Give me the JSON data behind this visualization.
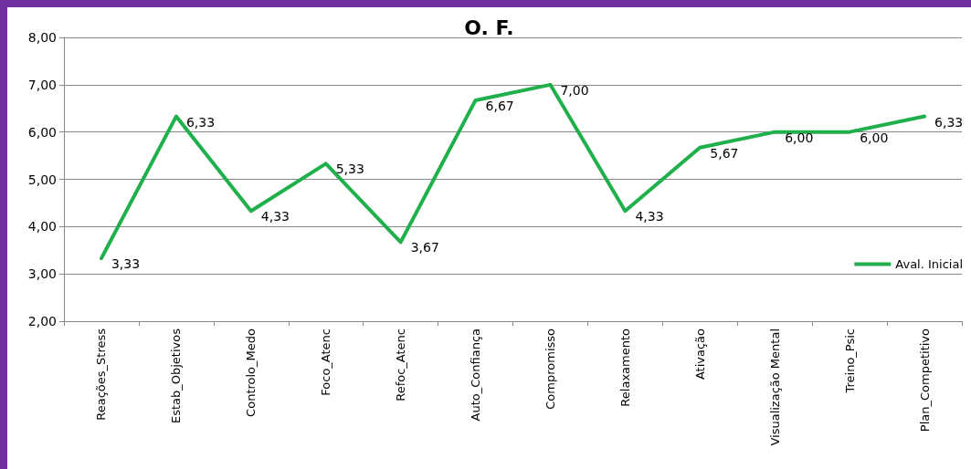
{
  "chart_data": {
    "type": "line",
    "title": "O. F.",
    "categories": [
      "Reações_Stress",
      "Estab_Objetivos",
      "Controlo_Medo",
      "Foco_Atenc",
      "Refoc_Atenc",
      "Auto_Confiança",
      "Compromisso",
      "Relaxamento",
      "Ativação",
      "Visualização Mental",
      "Treino_Psic",
      "Plan_Competitivo"
    ],
    "series": [
      {
        "name": "Aval. Inicial",
        "color": "#1fb04c",
        "values": [
          3.33,
          6.33,
          4.33,
          5.33,
          3.67,
          6.67,
          7.0,
          4.33,
          5.67,
          6.0,
          6.0,
          6.33
        ],
        "value_labels": [
          "3,33",
          "6,33",
          "4,33",
          "5,33",
          "3,67",
          "6,67",
          "7,00",
          "4,33",
          "5,67",
          "6,00",
          "6,00",
          "6,33"
        ]
      }
    ],
    "ylim": [
      2,
      8
    ],
    "yticks": [
      {
        "value": 2,
        "label": "2,00"
      },
      {
        "value": 3,
        "label": "3,00"
      },
      {
        "value": 4,
        "label": "4,00"
      },
      {
        "value": 5,
        "label": "5,00"
      },
      {
        "value": 6,
        "label": "6,00"
      },
      {
        "value": 7,
        "label": "7,00"
      },
      {
        "value": 8,
        "label": "8,00"
      }
    ],
    "grid": "y",
    "legend": "right",
    "marker": "none",
    "line_style": "solid"
  }
}
